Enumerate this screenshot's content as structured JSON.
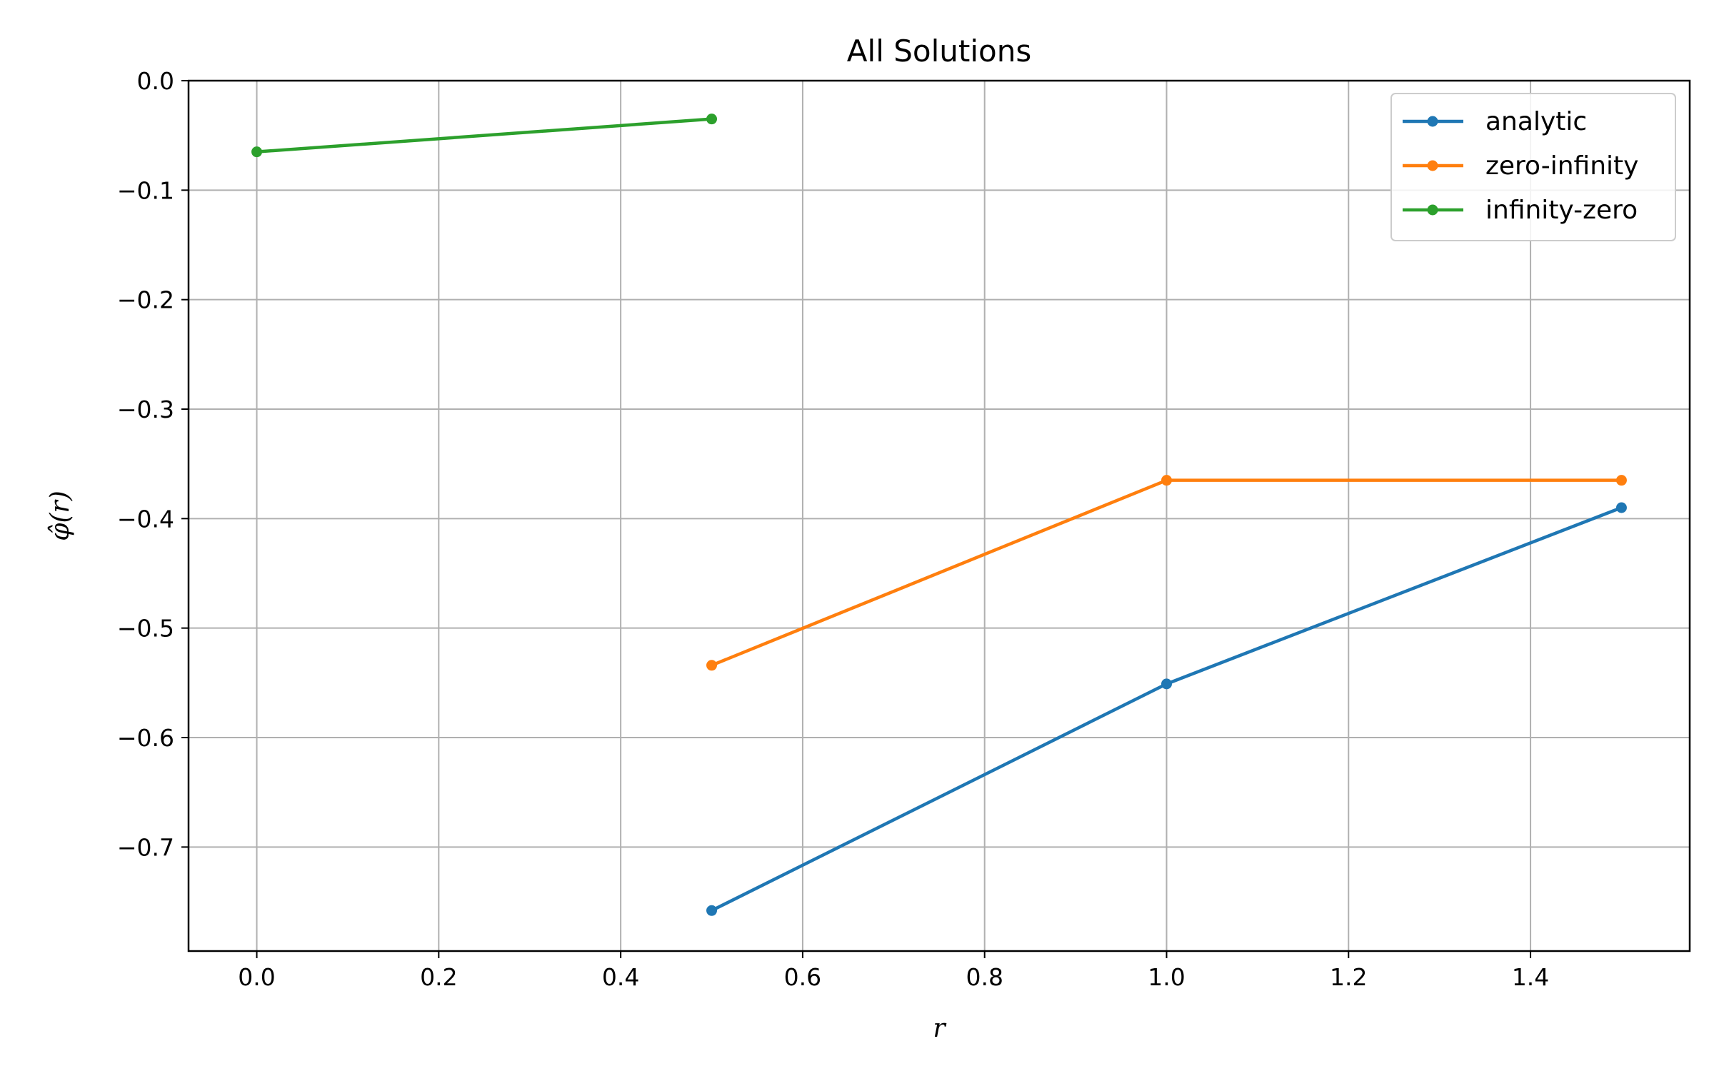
{
  "chart_data": {
    "type": "line",
    "title": "All Solutions",
    "xlabel": "r",
    "ylabel": "φ̂(r)",
    "xlim": [
      -0.075,
      1.575
    ],
    "ylim": [
      -0.795,
      0.0
    ],
    "xticks": [
      0.0,
      0.2,
      0.4,
      0.6,
      0.8,
      1.0,
      1.2,
      1.4
    ],
    "xtick_labels": [
      "0.0",
      "0.2",
      "0.4",
      "0.6",
      "0.8",
      "1.0",
      "1.2",
      "1.4"
    ],
    "yticks": [
      0.0,
      -0.1,
      -0.2,
      -0.3,
      -0.4,
      -0.5,
      -0.6,
      -0.7
    ],
    "ytick_labels": [
      "0.0",
      "−0.1",
      "−0.2",
      "−0.3",
      "−0.4",
      "−0.5",
      "−0.6",
      "−0.7"
    ],
    "grid": true,
    "legend_position": "top-right",
    "series": [
      {
        "name": "analytic",
        "color": "#1f77b4",
        "x": [
          0.5,
          1.0,
          1.5
        ],
        "y": [
          -0.758,
          -0.551,
          -0.39
        ]
      },
      {
        "name": "zero-infinity",
        "color": "#ff7f0e",
        "x": [
          0.5,
          1.0,
          1.5
        ],
        "y": [
          -0.534,
          -0.365,
          -0.365
        ]
      },
      {
        "name": "infinity-zero",
        "color": "#2ca02c",
        "x": [
          0.0,
          0.5
        ],
        "y": [
          -0.065,
          -0.035
        ]
      }
    ]
  }
}
